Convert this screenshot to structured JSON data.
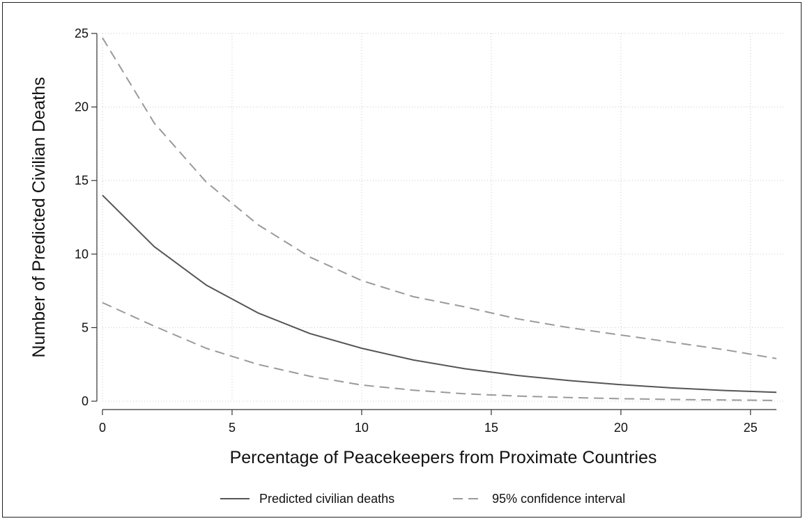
{
  "chart_data": {
    "type": "line",
    "title": "",
    "xlabel": "Percentage of Peacekeepers from Proximate Countries",
    "ylabel": "Number of Predicted Civilian Deaths",
    "xlim": [
      0,
      26
    ],
    "ylim": [
      0,
      25
    ],
    "x_ticks": [
      0,
      5,
      10,
      15,
      20,
      25
    ],
    "y_ticks": [
      0,
      5,
      10,
      15,
      20,
      25
    ],
    "grid": true,
    "legend_position": "bottom",
    "x": [
      0,
      2,
      4,
      6,
      8,
      10,
      12,
      14,
      16,
      18,
      20,
      22,
      24,
      26
    ],
    "series": [
      {
        "name": "Predicted civilian deaths",
        "style": "solid",
        "color": "#555555",
        "values": [
          14.0,
          10.5,
          7.9,
          6.0,
          4.6,
          3.6,
          2.8,
          2.2,
          1.75,
          1.4,
          1.12,
          0.9,
          0.73,
          0.6
        ]
      },
      {
        "name": "95% confidence interval",
        "style": "dashed",
        "color": "#9a9a9a",
        "values": [
          24.7,
          18.9,
          14.9,
          12.0,
          9.8,
          8.2,
          7.1,
          6.4,
          5.6,
          5.0,
          4.5,
          4.0,
          3.5,
          2.9
        ]
      },
      {
        "name": "",
        "style": "dashed",
        "color": "#9a9a9a",
        "values": [
          6.7,
          5.1,
          3.6,
          2.5,
          1.7,
          1.1,
          0.75,
          0.5,
          0.35,
          0.25,
          0.17,
          0.12,
          0.08,
          0.05
        ]
      }
    ]
  },
  "legend": {
    "items": [
      {
        "label": "Predicted civilian deaths",
        "style": "solid",
        "color": "#555555"
      },
      {
        "label": "95% confidence interval",
        "style": "dashed",
        "color": "#9a9a9a"
      }
    ]
  }
}
